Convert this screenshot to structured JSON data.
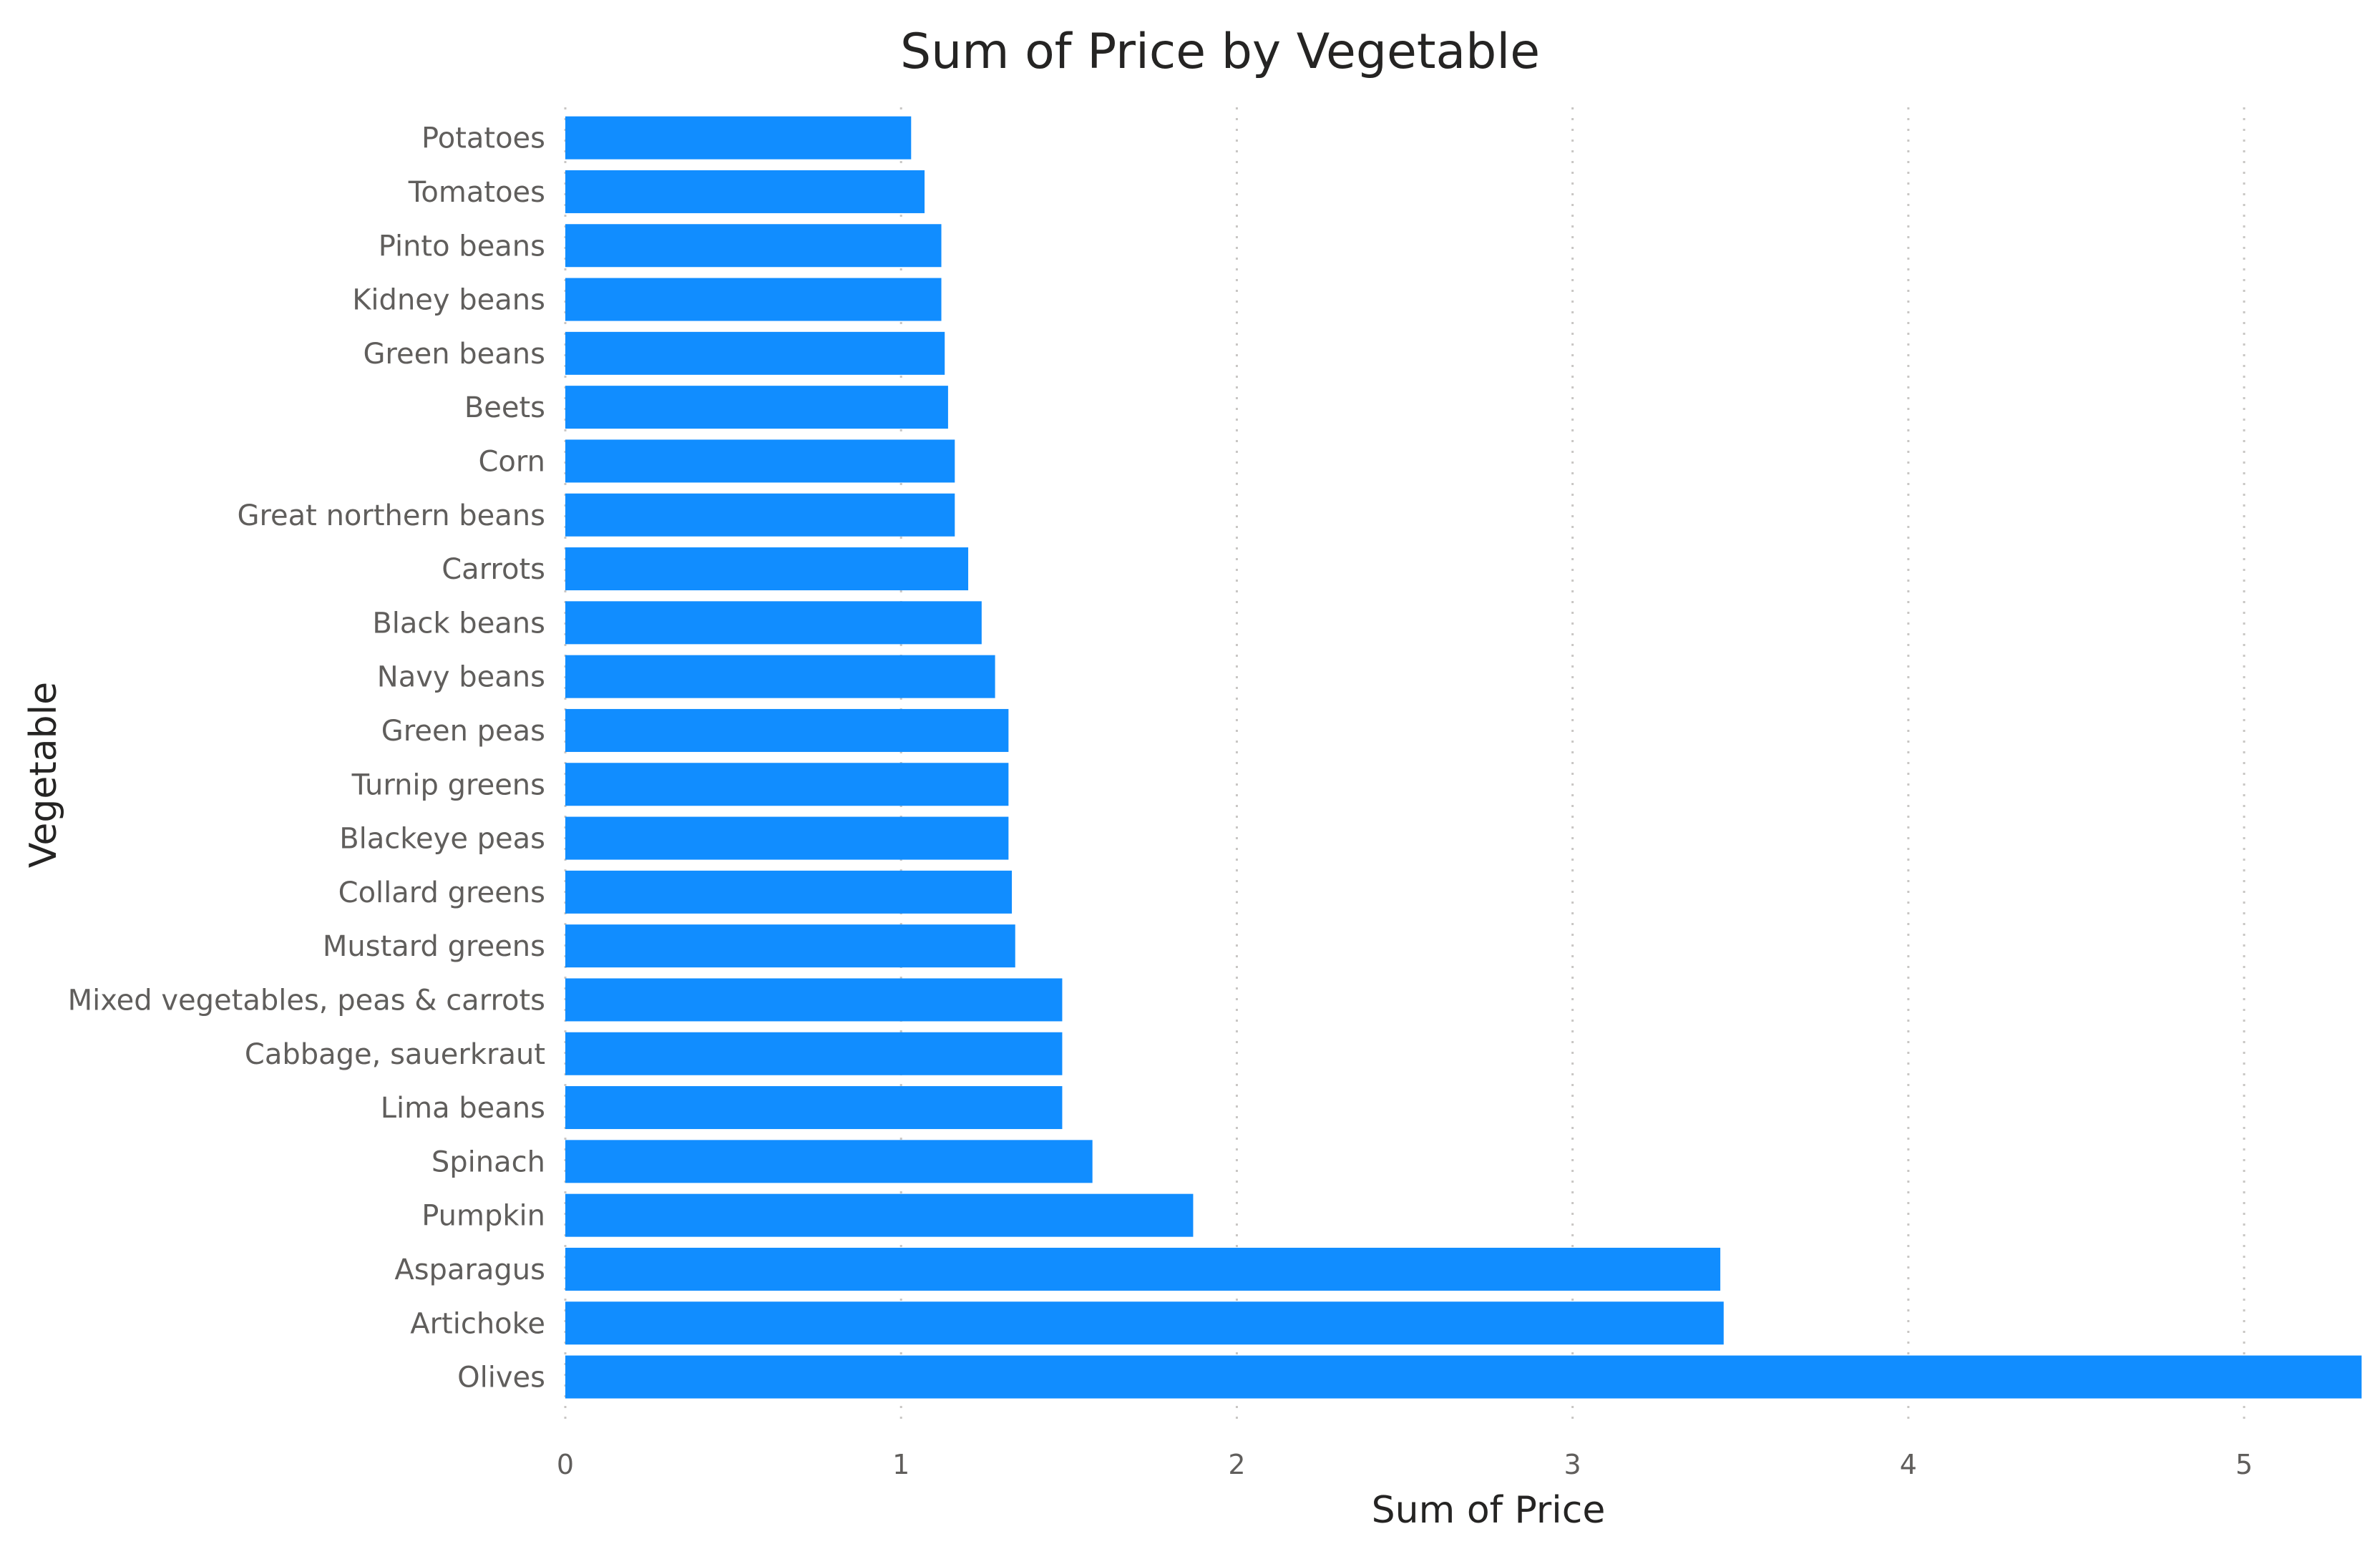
{
  "chart_data": {
    "type": "bar",
    "orientation": "horizontal",
    "title": "Sum of Price by Vegetable",
    "xlabel": "Sum of Price",
    "ylabel": "Vegetable",
    "categories": [
      "Potatoes",
      "Tomatoes",
      "Pinto beans",
      "Kidney beans",
      "Green beans",
      "Beets",
      "Corn",
      "Great northern beans",
      "Carrots",
      "Black beans",
      "Navy beans",
      "Green peas",
      "Turnip greens",
      "Blackeye peas",
      "Collard greens",
      "Mustard greens",
      "Mixed vegetables, peas & carrots",
      "Cabbage, sauerkraut",
      "Lima beans",
      "Spinach",
      "Pumpkin",
      "Asparagus",
      "Artichoke",
      "Olives"
    ],
    "values": [
      1.03,
      1.07,
      1.12,
      1.12,
      1.13,
      1.14,
      1.16,
      1.16,
      1.2,
      1.24,
      1.28,
      1.32,
      1.32,
      1.32,
      1.33,
      1.34,
      1.48,
      1.48,
      1.48,
      1.57,
      1.87,
      3.44,
      3.45,
      5.35
    ],
    "xlim": [
      0,
      5.36
    ],
    "xticks": [
      "0",
      "1",
      "2",
      "3",
      "4",
      "5"
    ],
    "xtick_values": [
      0,
      1,
      2,
      3,
      4,
      5
    ],
    "grid": "vertical dotted",
    "legend": "none",
    "bar_color": "#118DFF"
  }
}
